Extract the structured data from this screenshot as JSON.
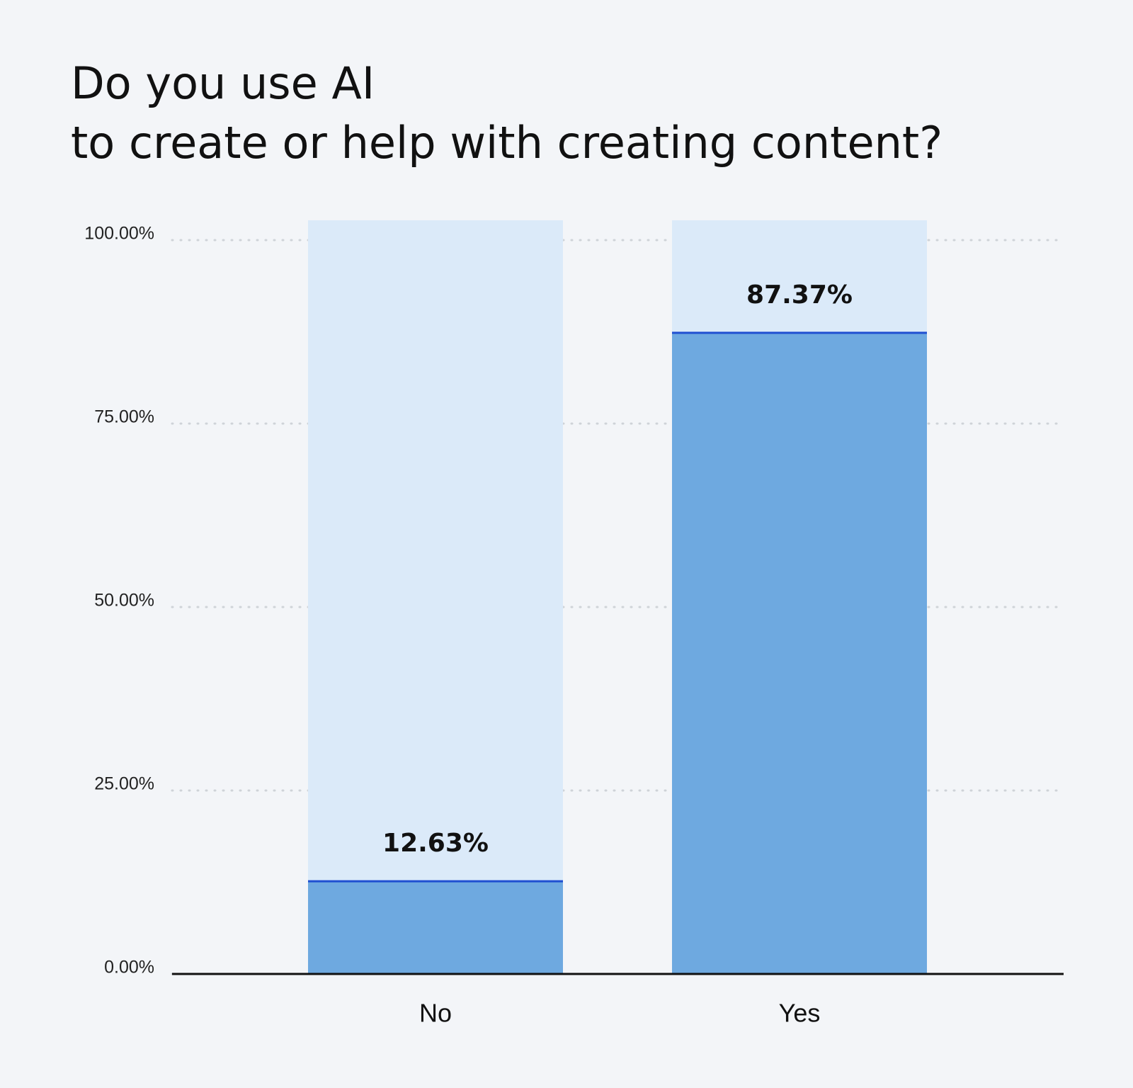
{
  "chart_data": {
    "type": "bar",
    "title": [
      "Do you use AI",
      "to create or help with creating content?"
    ],
    "categories": [
      "No",
      "Yes"
    ],
    "values": [
      12.63,
      87.37
    ],
    "value_labels": [
      "12.63%",
      "87.37%"
    ],
    "color": "#6ea9e0",
    "ylim": [
      0,
      102.7
    ],
    "yticks": [
      {
        "value": 0,
        "label": "0.00%"
      },
      {
        "value": 25,
        "label": "25.00%"
      },
      {
        "value": 50,
        "label": "50.00%"
      },
      {
        "value": 75,
        "label": "75.00%"
      },
      {
        "value": 100,
        "label": "100.00%"
      }
    ],
    "grid": true
  }
}
